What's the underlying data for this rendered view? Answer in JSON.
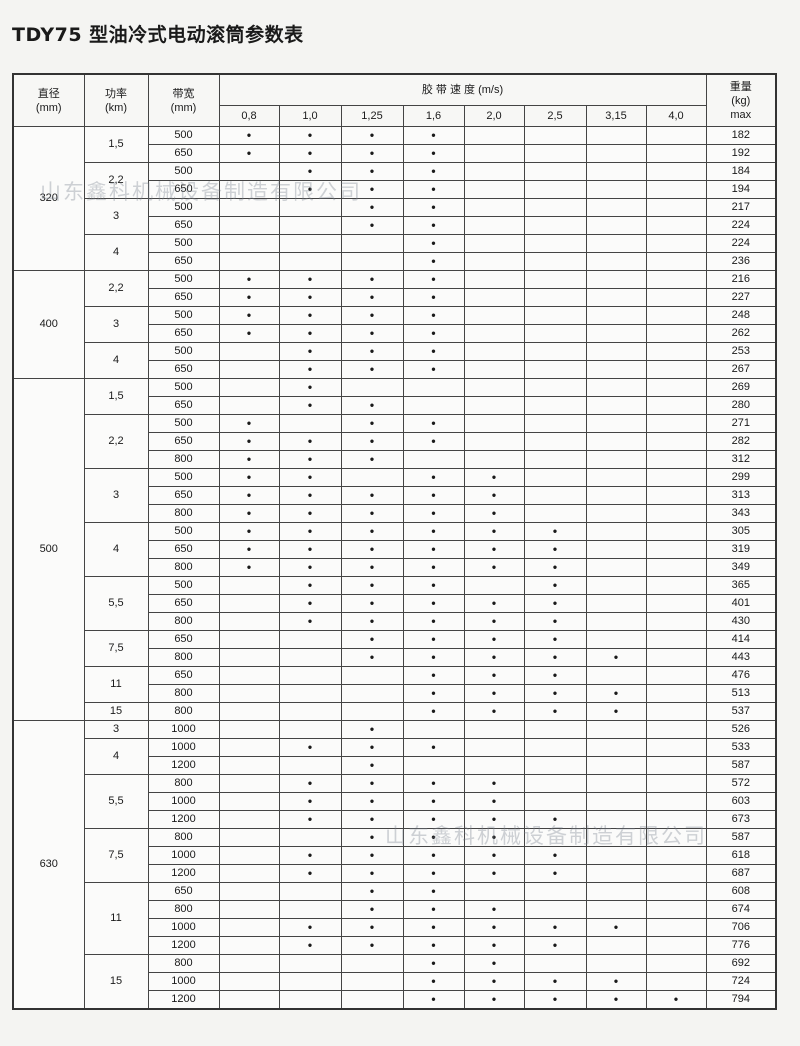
{
  "title": "TDY75 型油冷式电动滚筒参数表",
  "watermark": "山东鑫科机械设备制造有限公司",
  "header": {
    "diameter": "直径",
    "diameter_unit": "(mm)",
    "power": "功率",
    "power_unit": "(km)",
    "width": "带宽",
    "width_unit": "(mm)",
    "speed": "胶 带 速 度 (m/s)",
    "speeds": [
      "0,8",
      "1,0",
      "1,25",
      "1,6",
      "2,0",
      "2,5",
      "3,15",
      "4,0"
    ],
    "weight": "重量",
    "weight_unit": "(kg)",
    "weight_max": "max"
  },
  "dot": "•",
  "groups": [
    {
      "diameter": "320",
      "powers": [
        {
          "power": "1,5",
          "rows": [
            [
              "500",
              "11110000",
              "182"
            ],
            [
              "650",
              "11110000",
              "192"
            ]
          ]
        },
        {
          "power": "2,2",
          "rows": [
            [
              "500",
              "01110000",
              "184"
            ],
            [
              "650",
              "01110000",
              "194"
            ]
          ]
        },
        {
          "power": "3",
          "rows": [
            [
              "500",
              "00110000",
              "217"
            ],
            [
              "650",
              "00110000",
              "224"
            ]
          ]
        },
        {
          "power": "4",
          "rows": [
            [
              "500",
              "00010000",
              "224"
            ],
            [
              "650",
              "00010000",
              "236"
            ]
          ]
        }
      ]
    },
    {
      "diameter": "400",
      "powers": [
        {
          "power": "2,2",
          "rows": [
            [
              "500",
              "11110000",
              "216"
            ],
            [
              "650",
              "11110000",
              "227"
            ]
          ]
        },
        {
          "power": "3",
          "rows": [
            [
              "500",
              "11110000",
              "248"
            ],
            [
              "650",
              "11110000",
              "262"
            ]
          ]
        },
        {
          "power": "4",
          "rows": [
            [
              "500",
              "01110000",
              "253"
            ],
            [
              "650",
              "01110000",
              "267"
            ]
          ]
        }
      ]
    },
    {
      "diameter": "500",
      "powers": [
        {
          "power": "1,5",
          "rows": [
            [
              "500",
              "01000000",
              "269"
            ],
            [
              "650",
              "01100000",
              "280"
            ]
          ]
        },
        {
          "power": "2,2",
          "rows": [
            [
              "500",
              "10110000",
              "271"
            ],
            [
              "650",
              "11110000",
              "282"
            ],
            [
              "800",
              "11100000",
              "312"
            ]
          ]
        },
        {
          "power": "3",
          "rows": [
            [
              "500",
              "11011000",
              "299"
            ],
            [
              "650",
              "11111000",
              "313"
            ],
            [
              "800",
              "11111000",
              "343"
            ]
          ]
        },
        {
          "power": "4",
          "rows": [
            [
              "500",
              "11111100",
              "305"
            ],
            [
              "650",
              "11111100",
              "319"
            ],
            [
              "800",
              "11111100",
              "349"
            ]
          ]
        },
        {
          "power": "5,5",
          "rows": [
            [
              "500",
              "01110100",
              "365"
            ],
            [
              "650",
              "01111100",
              "401"
            ],
            [
              "800",
              "01111100",
              "430"
            ]
          ]
        },
        {
          "power": "7,5",
          "rows": [
            [
              "650",
              "00111100",
              "414"
            ],
            [
              "800",
              "00111110",
              "443"
            ]
          ]
        },
        {
          "power": "11",
          "rows": [
            [
              "650",
              "00011100",
              "476"
            ],
            [
              "800",
              "00011110",
              "513"
            ]
          ]
        },
        {
          "power": "15",
          "rows": [
            [
              "800",
              "00011110",
              "537"
            ]
          ]
        }
      ]
    },
    {
      "diameter": "630",
      "powers": [
        {
          "power": "3",
          "rows": [
            [
              "1000",
              "00100000",
              "526"
            ]
          ]
        },
        {
          "power": "4",
          "rows": [
            [
              "1000",
              "01110000",
              "533"
            ],
            [
              "1200",
              "00100000",
              "587"
            ]
          ]
        },
        {
          "power": "5,5",
          "rows": [
            [
              "800",
              "01111000",
              "572"
            ],
            [
              "1000",
              "01111000",
              "603"
            ],
            [
              "1200",
              "01111100",
              "673"
            ]
          ]
        },
        {
          "power": "7,5",
          "rows": [
            [
              "800",
              "00111000",
              "587"
            ],
            [
              "1000",
              "01111100",
              "618"
            ],
            [
              "1200",
              "01111100",
              "687"
            ]
          ]
        },
        {
          "power": "11",
          "rows": [
            [
              "650",
              "00110000",
              "608"
            ],
            [
              "800",
              "00111000",
              "674"
            ],
            [
              "1000",
              "01111110",
              "706"
            ],
            [
              "1200",
              "01111100",
              "776"
            ]
          ]
        },
        {
          "power": "15",
          "rows": [
            [
              "800",
              "00011000",
              "692"
            ],
            [
              "1000",
              "00011110",
              "724"
            ],
            [
              "1200",
              "00011111",
              "794"
            ]
          ]
        }
      ]
    }
  ]
}
